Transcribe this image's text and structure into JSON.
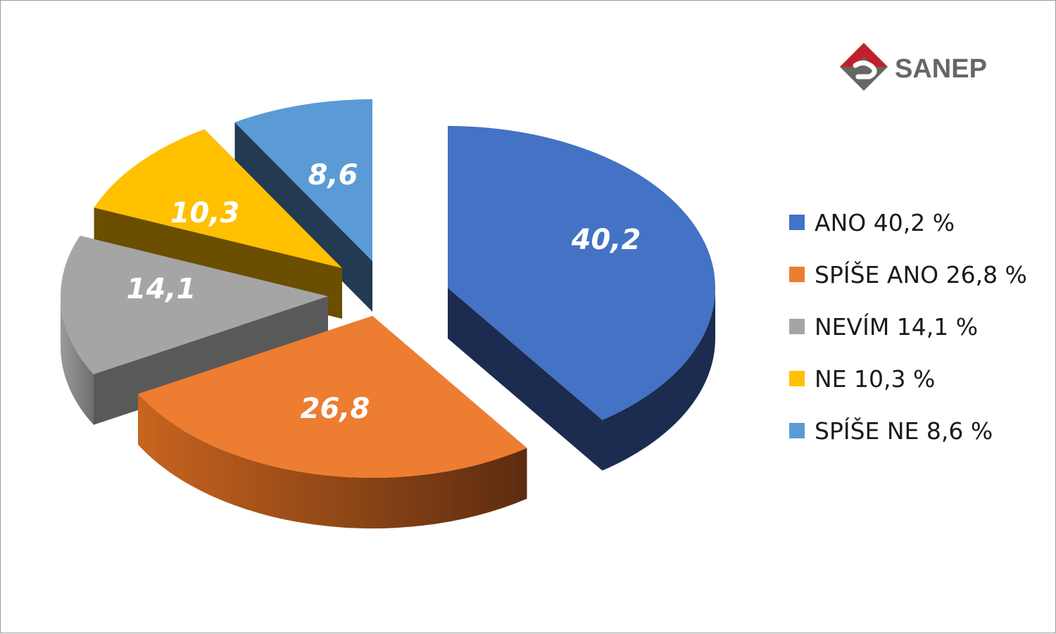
{
  "logo": {
    "text": "SANEP"
  },
  "chart_data": {
    "type": "pie",
    "categories": [
      "ANO",
      "SPÍŠE ANO",
      "NEVÍM",
      "NE",
      "SPÍŠE NE"
    ],
    "values": [
      40.2,
      26.8,
      14.1,
      10.3,
      8.6
    ],
    "slice_labels": [
      "40,2",
      "26,8",
      "14,1",
      "10,3",
      "8,6"
    ],
    "legend": [
      "ANO 40,2 %",
      "SPÍŠE ANO 26,8 %",
      "NEVÍM 14,1 %",
      "NE 10,3 %",
      "SPÍŠE NE 8,6 %"
    ],
    "colors": [
      "#4472C4",
      "#ED7D31",
      "#A5A5A5",
      "#FFC000",
      "#5B9BD5"
    ],
    "side_colors": [
      "#1C2B50",
      "#8A4416",
      "#595959",
      "#6B4E00",
      "#223A52"
    ],
    "style": "3d-exploded",
    "legend_position": "right"
  }
}
